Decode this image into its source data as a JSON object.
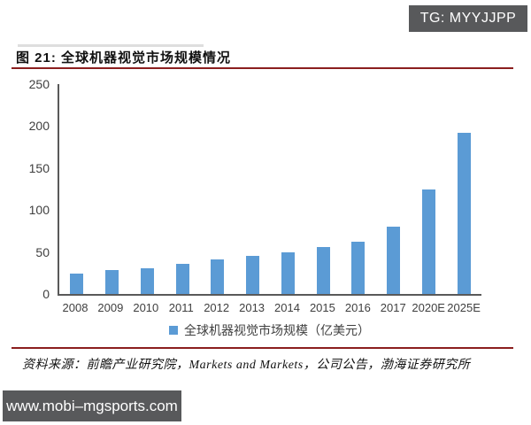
{
  "badge": {
    "label": "TG: MYYJJPP"
  },
  "figure": {
    "title": "图 21: 全球机器视觉市场规模情况"
  },
  "chart_data": {
    "type": "bar",
    "title": "全球机器视觉市场规模情况",
    "categories": [
      "2008",
      "2009",
      "2010",
      "2011",
      "2012",
      "2013",
      "2014",
      "2015",
      "2016",
      "2017",
      "2020E",
      "2025E"
    ],
    "values": [
      24,
      28,
      31,
      36,
      41,
      45,
      50,
      56,
      62,
      80,
      125,
      192
    ],
    "legend": "全球机器视觉市场规模（亿美元）",
    "legend_position": "bottom",
    "xlabel": "",
    "ylabel": "",
    "ylim": [
      0,
      250
    ],
    "yticks": [
      0,
      50,
      100,
      150,
      200,
      250
    ],
    "grid": false,
    "bar_color": "#5b9bd5"
  },
  "source": {
    "text": "资料来源：前瞻产业研究院，Markets and Markets，公司公告，渤海证券研究所"
  },
  "url_box": {
    "label": "www.mobi–mgsports.com"
  },
  "colors": {
    "bar_blue": "#5b9bd5",
    "rule_red": "#8b1e1e",
    "box_gray": "#58595b",
    "axis_gray": "#595959"
  }
}
